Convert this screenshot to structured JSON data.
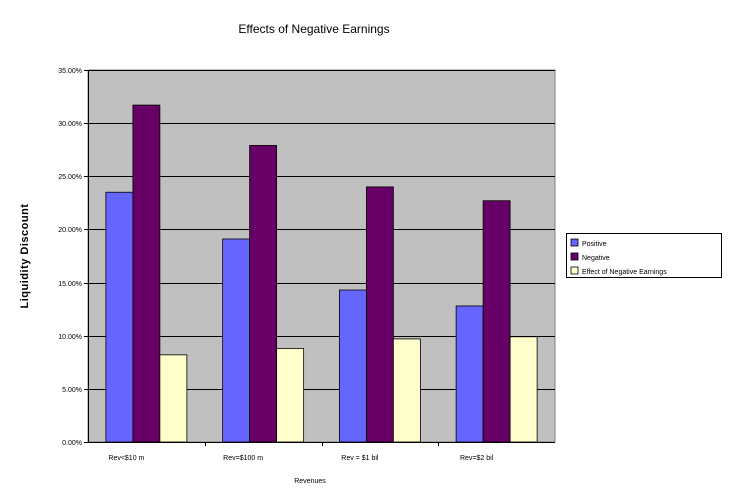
{
  "chart_data": {
    "type": "bar",
    "title": "Effects of Negative Earnings",
    "xlabel": "Revenues",
    "ylabel": "Liquidity Discount",
    "categories": [
      "Rev<$10 m",
      "Rev=$100 m",
      "Rev = $1 bil",
      "Rev=$2 bil"
    ],
    "y_ticks": [
      "0.00%",
      "5.00%",
      "10.00%",
      "15.00%",
      "20.00%",
      "25.00%",
      "30.00%",
      "35.00%"
    ],
    "ylim": [
      0,
      35
    ],
    "grid": true,
    "legend_position": "right",
    "series": [
      {
        "name": "Positive",
        "color": "#6666ff",
        "values": [
          23.5,
          19.1,
          14.3,
          12.8
        ]
      },
      {
        "name": "Negative",
        "color": "#660066",
        "values": [
          31.7,
          27.9,
          24.0,
          22.7
        ]
      },
      {
        "name": "Effect of Negative Earnings",
        "color": "#ffffcc",
        "values": [
          8.2,
          8.8,
          9.7,
          9.9
        ]
      }
    ],
    "plot_background": "#c0c0c0"
  }
}
